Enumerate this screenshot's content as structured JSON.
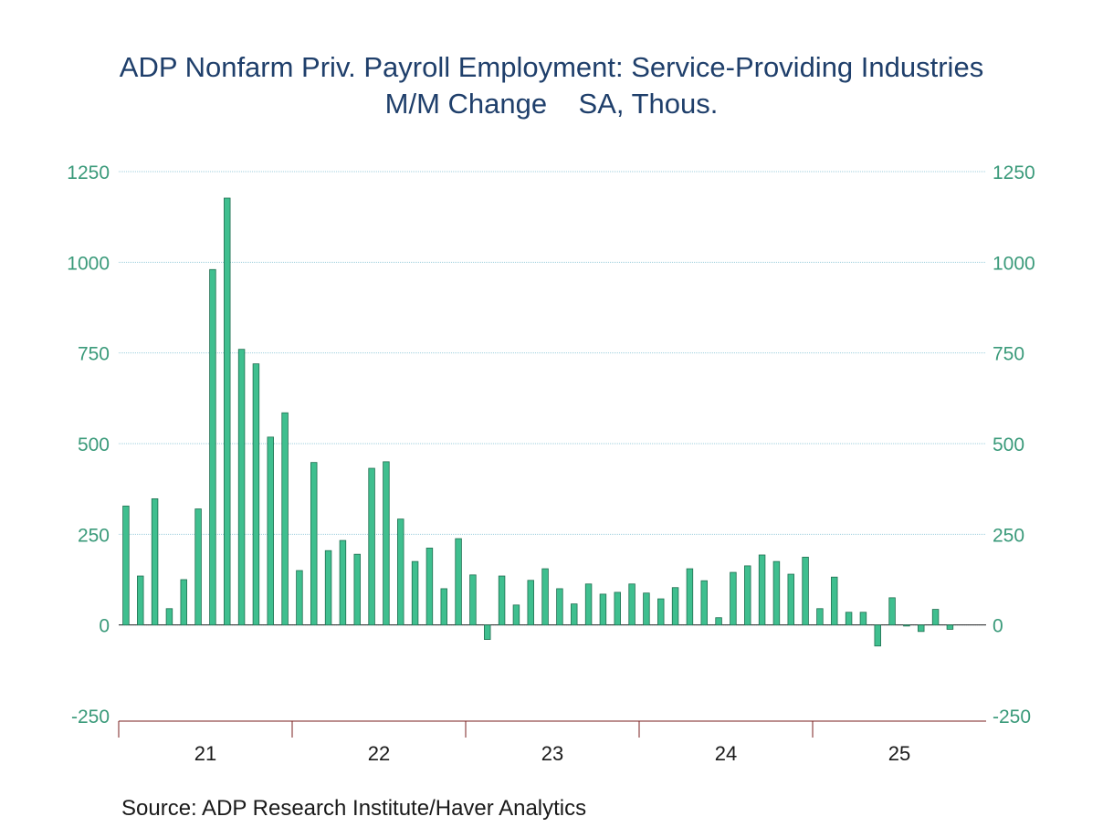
{
  "chart_data": {
    "type": "bar",
    "title": "ADP Nonfarm Priv. Payroll Employment: Service-Providing Industries",
    "subtitle": "M/M Change    SA, Thous.",
    "ylim": [
      -250,
      1250
    ],
    "yticks": [
      -250,
      0,
      250,
      500,
      750,
      1000,
      1250
    ],
    "ytick_labels": [
      "-250",
      "0",
      "250",
      "500",
      "750",
      "1000",
      "1250"
    ],
    "x_year_labels": [
      "21",
      "22",
      "23",
      "24",
      "25"
    ],
    "grid": true,
    "bar_color": "#3fbf8f",
    "series": [
      {
        "values": [
          328,
          135,
          348,
          45,
          125,
          320,
          980,
          1177,
          760,
          720,
          518,
          585,
          150,
          448,
          205,
          233,
          195,
          432,
          450,
          292,
          175,
          212,
          100,
          238,
          138,
          -40,
          135,
          55,
          123,
          155,
          100,
          58,
          113,
          85,
          90,
          113,
          88,
          72,
          103,
          155,
          122,
          20,
          145,
          163,
          193,
          175,
          140,
          187,
          45,
          132,
          35,
          35,
          -58,
          75,
          -3,
          -18,
          43,
          -12
        ]
      }
    ]
  },
  "source": "Source:  ADP Research Institute/Haver Analytics",
  "colors": {
    "title": "#1f3f6b",
    "axis_labels": "#3a9a7a",
    "grid": "#9fcfdd",
    "axis": "#7a1f1f"
  }
}
